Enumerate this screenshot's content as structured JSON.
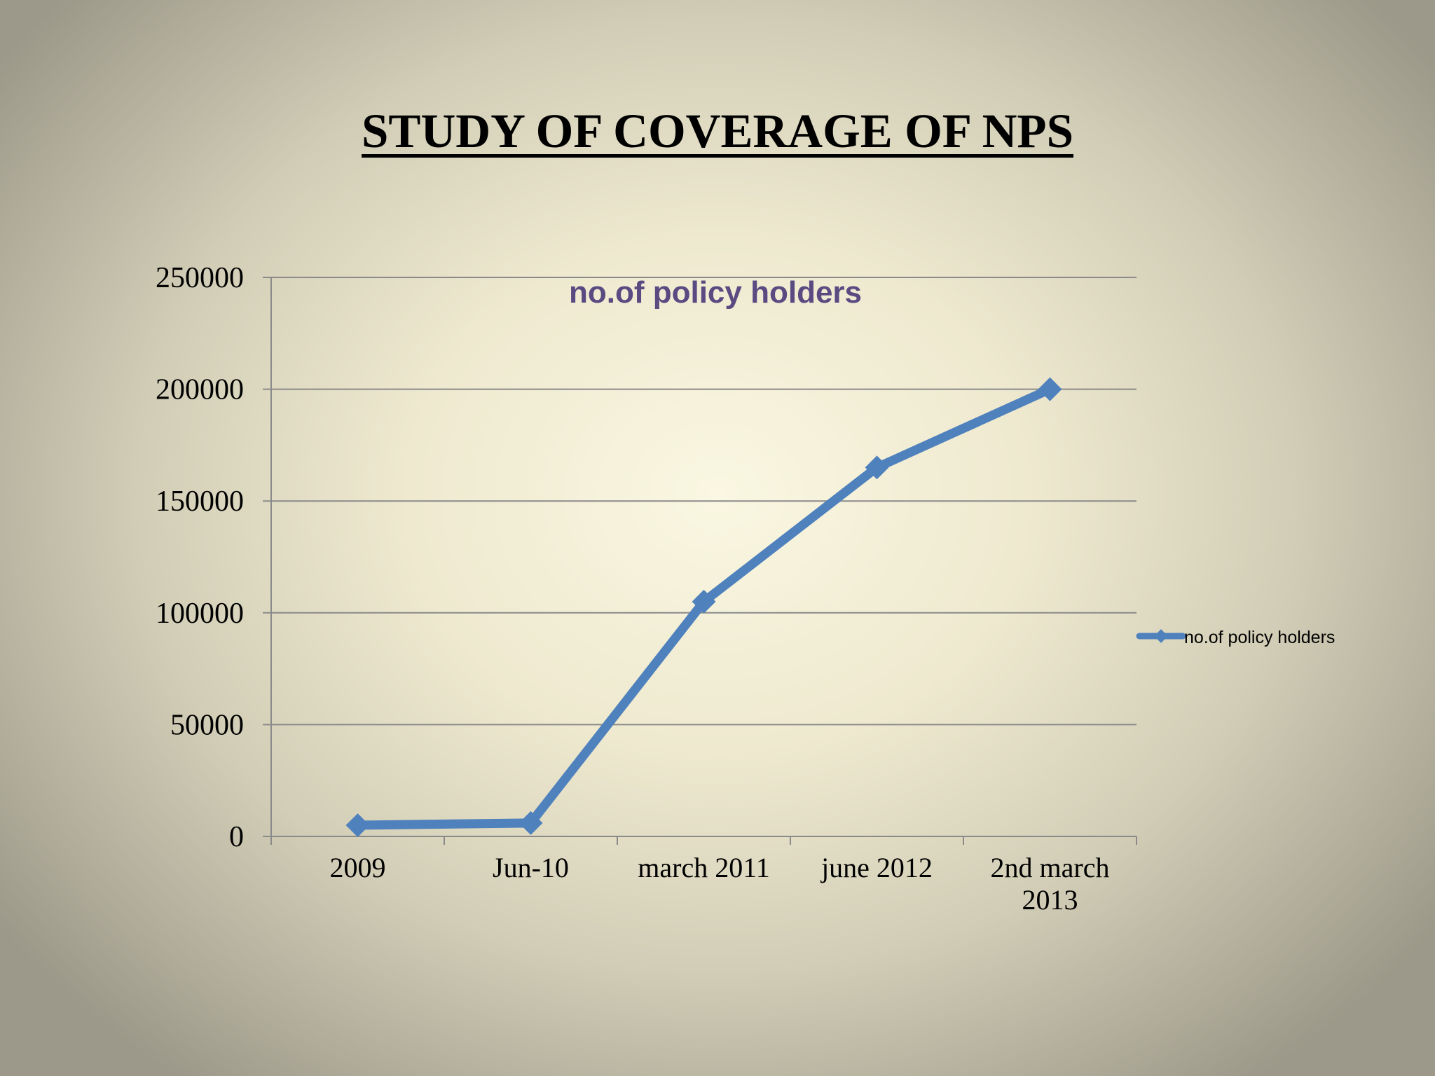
{
  "slide": {
    "title": "STUDY OF COVERAGE OF NPS"
  },
  "chart_data": {
    "type": "line",
    "title": "no.of policy holders",
    "xlabel": "",
    "ylabel": "",
    "categories": [
      "2009",
      "Jun-10",
      "march 2011",
      "june 2012",
      "2nd march 2013"
    ],
    "series": [
      {
        "name": "no.of policy holders",
        "values": [
          5000,
          6000,
          105000,
          165000,
          200000
        ],
        "color": "#4f81bd"
      }
    ],
    "ylim": [
      0,
      250000
    ],
    "yticks": [
      0,
      50000,
      100000,
      150000,
      200000,
      250000
    ],
    "grid": true,
    "legend": "right",
    "title_color": "#5a4a82"
  }
}
